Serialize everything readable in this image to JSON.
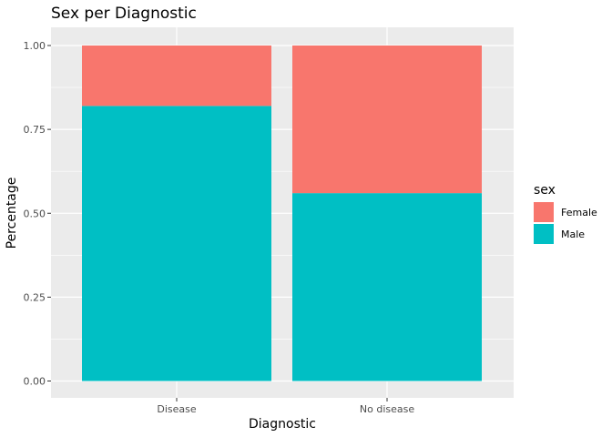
{
  "chart_data": {
    "type": "bar",
    "stacked": true,
    "title": "Sex per Diagnostic",
    "xlabel": "Diagnostic",
    "ylabel": "Percentage",
    "categories": [
      "Disease",
      "No disease"
    ],
    "y_ticks": [
      "0.00",
      "0.25",
      "0.50",
      "0.75",
      "1.00"
    ],
    "ylim": [
      0,
      1
    ],
    "grid": true,
    "legend_position": "right",
    "legend_title": "sex",
    "series": [
      {
        "name": "Female",
        "color": "#F8766D",
        "values": [
          0.18,
          0.44
        ]
      },
      {
        "name": "Male",
        "color": "#00BFC4",
        "values": [
          0.82,
          0.56
        ]
      }
    ]
  }
}
